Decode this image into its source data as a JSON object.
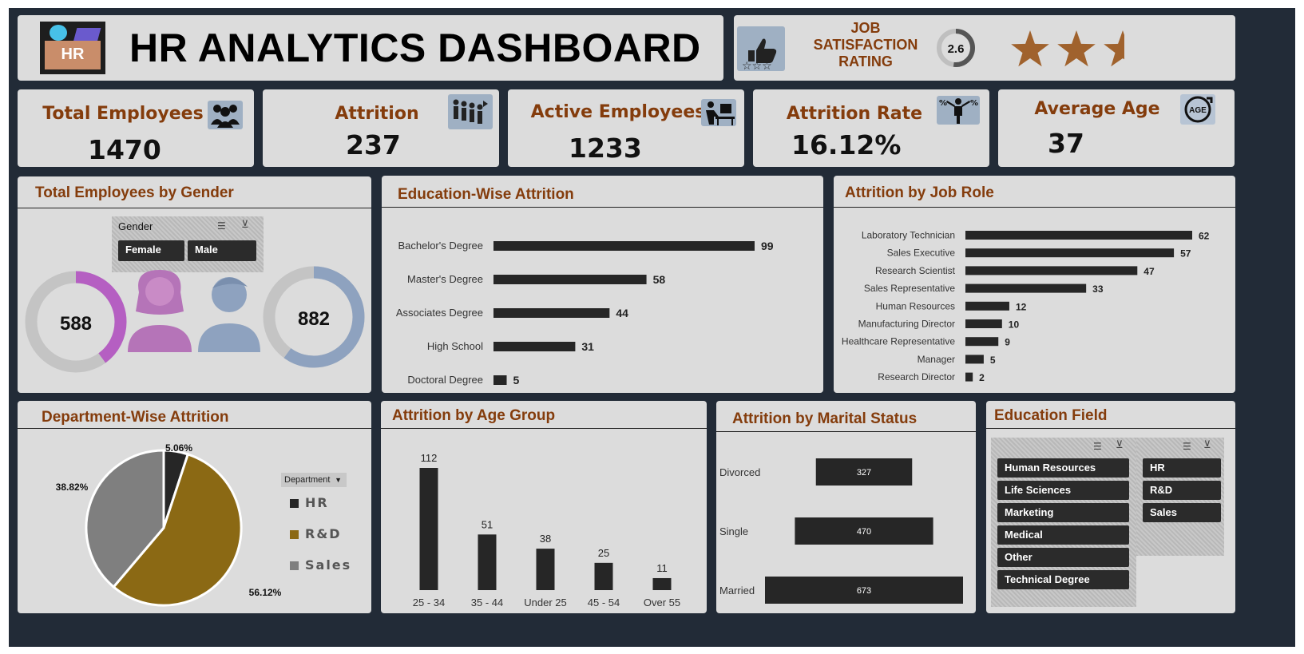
{
  "header": {
    "title": "HR ANALYTICS DASHBOARD",
    "logo_text": "HR"
  },
  "satisfaction": {
    "label_lines": [
      "JOB",
      "SATISFACTION",
      "RATING"
    ],
    "score": "2.6",
    "score_value": 2.6,
    "score_max": 5,
    "stars": 2.5
  },
  "kpis": [
    {
      "label": "Total Employees",
      "value": "1470",
      "icon": "people-group-icon"
    },
    {
      "label": "Attrition",
      "value": "237",
      "icon": "people-leaving-icon"
    },
    {
      "label": "Active Employees",
      "value": "1233",
      "icon": "employee-at-desk-icon"
    },
    {
      "label": "Attrition Rate",
      "value": "16.12%",
      "icon": "percent-person-icon"
    },
    {
      "label": "Average Age",
      "value": "37",
      "icon": "age-icon"
    }
  ],
  "gender": {
    "title": "Total Employees by Gender",
    "slicer_title": "Gender",
    "slicer_items": [
      "Female",
      "Male"
    ],
    "female_value": "588",
    "male_value": "882",
    "female_share": 0.4,
    "male_share": 0.6,
    "colors": {
      "female": "#b55fc2",
      "male": "#8ea2bf",
      "ring": "#c4c4c4"
    }
  },
  "education_attrition": {
    "title": "Education-Wise Attrition",
    "chart_data": {
      "type": "bar",
      "orientation": "horizontal",
      "categories": [
        "Bachelor's Degree",
        "Master's Degree",
        "Associates Degree",
        "High School",
        "Doctoral Degree"
      ],
      "values": [
        99,
        58,
        44,
        31,
        5
      ]
    }
  },
  "job_role": {
    "title": "Attrition by Job Role",
    "chart_data": {
      "type": "bar",
      "orientation": "horizontal",
      "categories": [
        "Laboratory Technician",
        "Sales Executive",
        "Research Scientist",
        "Sales Representative",
        "Human Resources",
        "Manufacturing Director",
        "Healthcare Representative",
        "Manager",
        "Research Director"
      ],
      "values": [
        62,
        57,
        47,
        33,
        12,
        10,
        9,
        5,
        2
      ]
    }
  },
  "department": {
    "title": "Department-Wise Attrition",
    "filter_label": "Department",
    "chart_data": {
      "type": "pie",
      "categories": [
        "HR",
        "R&D",
        "Sales"
      ],
      "values": [
        5.06,
        56.12,
        38.82
      ],
      "labels": [
        "5.06%",
        "56.12%",
        "38.82%"
      ],
      "colors": [
        "#262626",
        "#8b6914",
        "#7f7f7f"
      ]
    }
  },
  "age_group": {
    "title": "Attrition by Age Group",
    "chart_data": {
      "type": "bar",
      "categories": [
        "25 - 34",
        "35 - 44",
        "Under 25",
        "45 - 54",
        "Over 55"
      ],
      "values": [
        112,
        51,
        38,
        25,
        11
      ]
    }
  },
  "marital": {
    "title": "Attrition by Marital Status",
    "chart_data": {
      "type": "bar",
      "orientation": "horizontal",
      "centered": true,
      "categories": [
        "Divorced",
        "Single",
        "Married"
      ],
      "values": [
        327,
        470,
        673
      ]
    }
  },
  "education_field": {
    "title": "Education Field",
    "left_items": [
      "Human Resources",
      "Life Sciences",
      "Marketing",
      "Medical",
      "Other",
      "Technical Degree"
    ],
    "right_items": [
      "HR",
      "R&D",
      "Sales"
    ]
  }
}
